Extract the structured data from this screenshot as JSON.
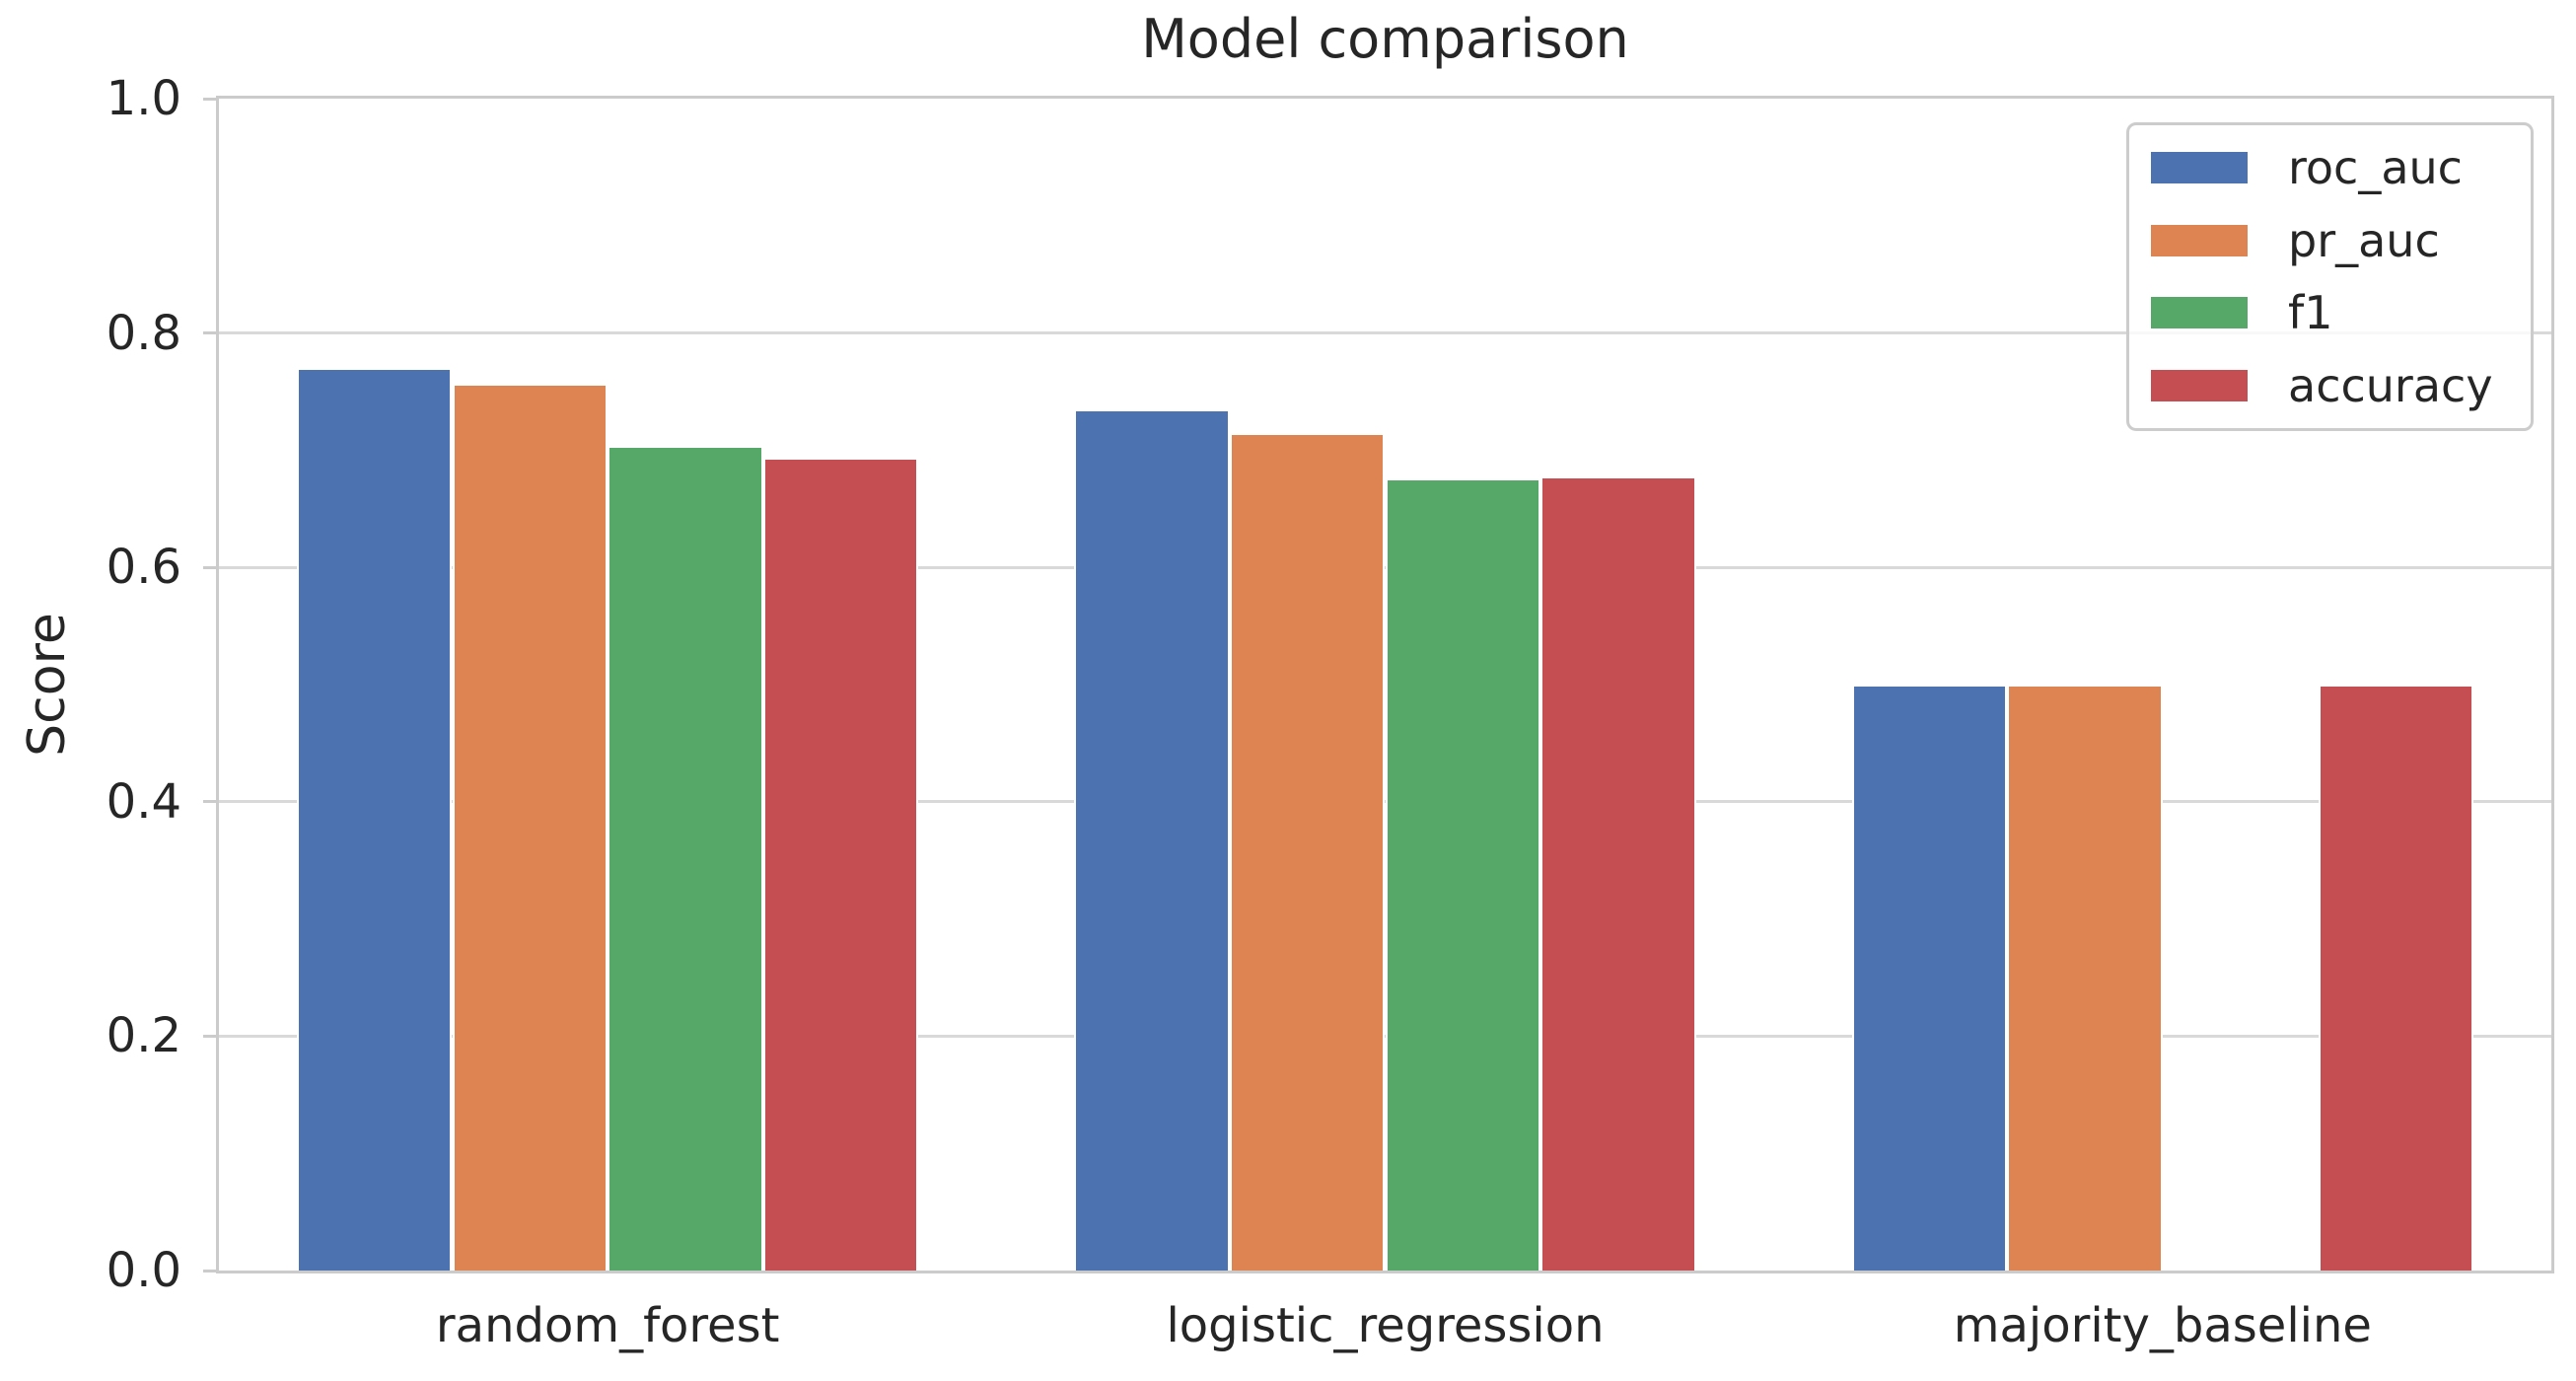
{
  "chart_data": {
    "type": "bar",
    "title": "Model comparison",
    "xlabel": "",
    "ylabel": "Score",
    "categories": [
      "random_forest",
      "logistic_regression",
      "majority_baseline"
    ],
    "series": [
      {
        "name": "roc_auc",
        "color": "#4C72B0",
        "values": [
          0.77,
          0.735,
          0.5
        ]
      },
      {
        "name": "pr_auc",
        "color": "#DD8452",
        "values": [
          0.757,
          0.715,
          0.5
        ]
      },
      {
        "name": "f1",
        "color": "#55A868",
        "values": [
          0.704,
          0.676,
          0.0
        ]
      },
      {
        "name": "accuracy",
        "color": "#C44E52",
        "values": [
          0.694,
          0.678,
          0.5
        ]
      }
    ],
    "ylim": [
      0.0,
      1.0
    ],
    "yticks": [
      0.0,
      0.2,
      0.4,
      0.6,
      0.8,
      1.0
    ],
    "ytick_labels": [
      "0.0",
      "0.2",
      "0.4",
      "0.6",
      "0.8",
      "1.0"
    ],
    "grid": true,
    "legend_position": "upper right",
    "colors": {
      "text": "#262626",
      "spine": "#cbcbcb",
      "gridline": "#d9d9d9",
      "background": "#ffffff"
    }
  }
}
